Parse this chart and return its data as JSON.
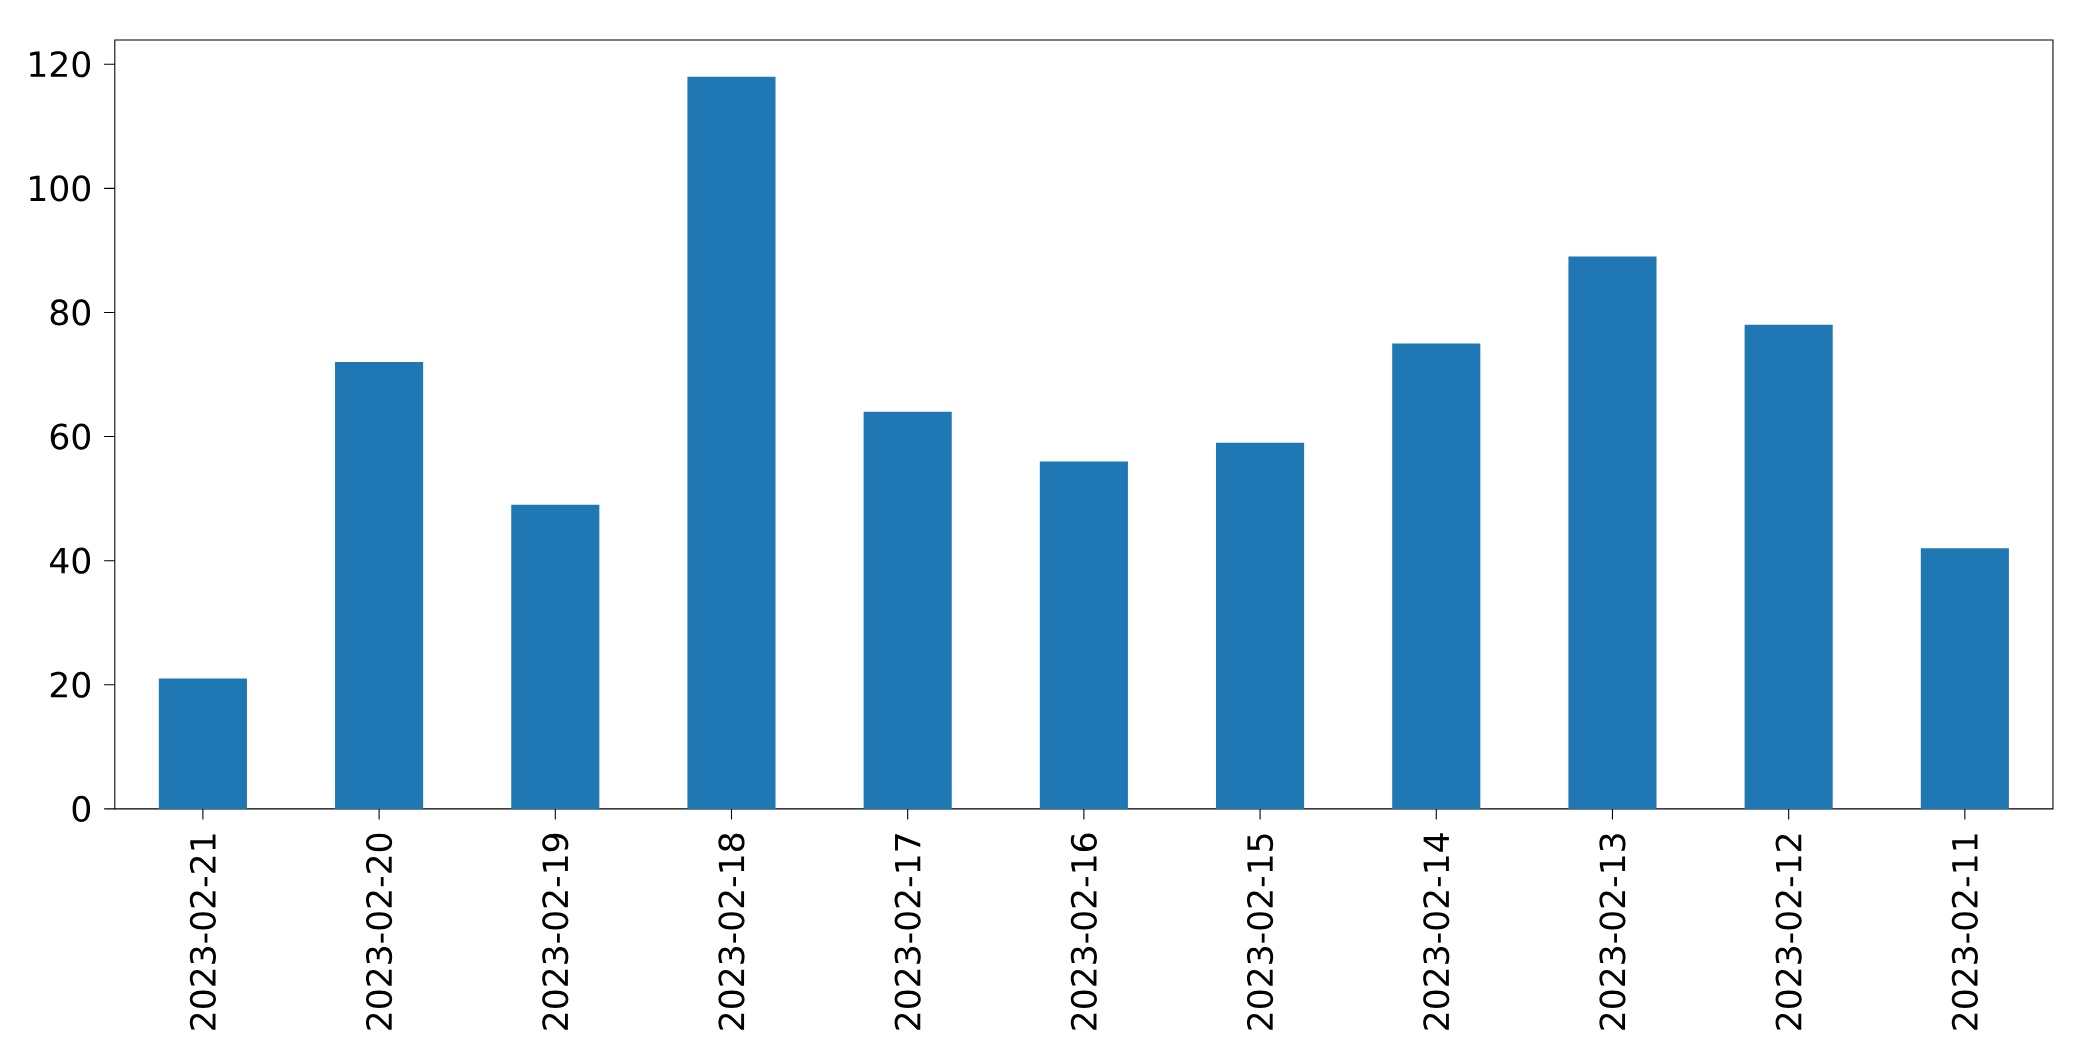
{
  "chart_data": {
    "type": "bar",
    "categories": [
      "2023-02-21",
      "2023-02-20",
      "2023-02-19",
      "2023-02-18",
      "2023-02-17",
      "2023-02-16",
      "2023-02-15",
      "2023-02-14",
      "2023-02-13",
      "2023-02-12",
      "2023-02-11"
    ],
    "values": [
      21,
      72,
      49,
      118,
      64,
      56,
      59,
      75,
      89,
      78,
      42
    ],
    "color": "#1f77b4",
    "ylim": [
      0,
      123.9
    ],
    "yticks": [
      0,
      20,
      40,
      60,
      80,
      100,
      120
    ]
  }
}
